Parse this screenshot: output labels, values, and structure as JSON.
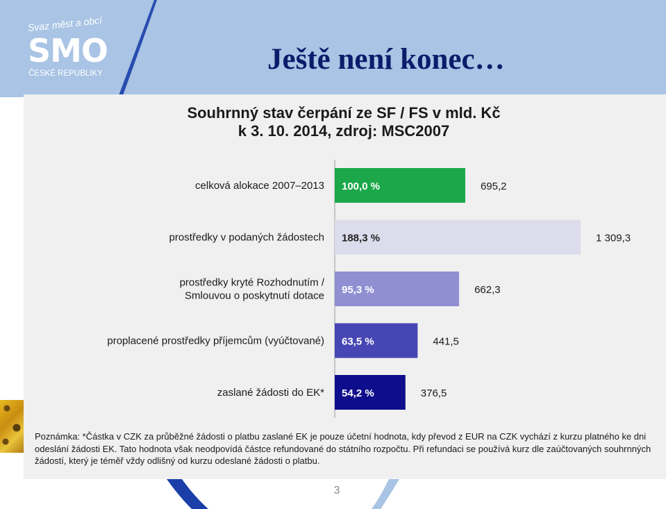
{
  "slide": {
    "title": "Ještě není konec…",
    "page_number": "3"
  },
  "logo": {
    "top_text": "Svaz měst a obcí",
    "main_text": "SMO",
    "bottom_text": "ČESKÉ REPUBLIKY"
  },
  "colors": {
    "title": "#0b1c6b",
    "header_band": "#a9c4e4",
    "panel": "#f0f0f0"
  },
  "chart_data": {
    "type": "bar",
    "orientation": "horizontal",
    "title": "Souhrnný stav čerpání ze SF / FS v mld. Kč",
    "subtitle": "k  3. 10. 2014, zdroj: MSC2007",
    "categories": [
      "celková alokace 2007–2013",
      "prostředky v podaných žádostech",
      "prostředky kryté Rozhodnutím / Smlouvou o poskytnutí dotace",
      "proplacené prostředky příjemcům (vyúčtované)",
      "zaslané žádosti do EK*"
    ],
    "category_lines": [
      [
        "celková alokace 2007–2013"
      ],
      [
        "prostředky v podaných žádostech"
      ],
      [
        "prostředky kryté Rozhodnutím /",
        "Smlouvou o poskytnutí dotace"
      ],
      [
        "proplacené prostředky příjemcům (vyúčtované)"
      ],
      [
        "zaslané žádosti do EK*"
      ]
    ],
    "values": [
      695.2,
      1309.3,
      662.3,
      441.5,
      376.5
    ],
    "value_labels": [
      "695,2",
      "1 309,3",
      "662,3",
      "441,5",
      "376,5"
    ],
    "percent_labels": [
      "100,0  %",
      "188,3  %",
      "95,3  %",
      "63,5  %",
      "54,2  %"
    ],
    "bar_colors": [
      "#1ca84a",
      "#dcdcec",
      "#8f8fd2",
      "#4646b4",
      "#0e0e8c"
    ],
    "percent_label_colors": [
      "#ffffff",
      "#222222",
      "#ffffff",
      "#ffffff",
      "#ffffff"
    ],
    "xlim": [
      0,
      1309.3
    ],
    "grid": false,
    "legend": "none"
  },
  "note": "Poznámka: *Částka v CZK za průběžné žádosti o platbu zaslané EK je pouze účetní hodnota, kdy převod z EUR na CZK vychází z kurzu platného ke dni odeslání žádosti EK. Tato hodnota však neodpovídá částce refundované do státního rozpočtu. Při refundaci se používá kurz dle zaúčtovaných souhrnných žádostí, který je téměř vždy  odlišný od kurzu odeslané žádosti o platbu."
}
